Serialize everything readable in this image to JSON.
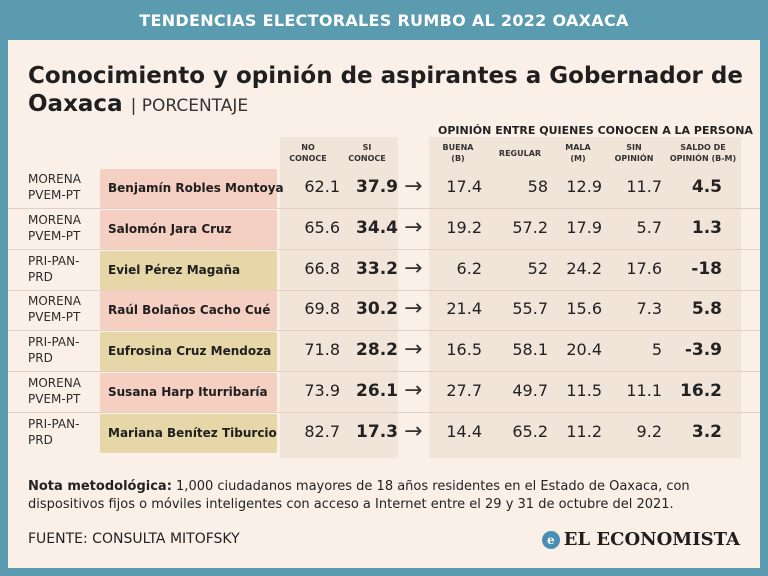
{
  "banner": "TENDENCIAS ELECTORALES RUMBO AL 2022 OAXACA",
  "title": "Conocimiento y opinión de aspirantes a Gobernador de Oaxaca",
  "title_unit": "| PORCENTAJE",
  "header": {
    "group_label": "OPINIÓN  ENTRE QUIENES CONOCEN A LA PERSONA",
    "no_conoce": [
      "NO",
      "CONOCE"
    ],
    "si_conoce": [
      "SI",
      "CONOCE"
    ],
    "buena": [
      "BUENA",
      "(B)"
    ],
    "regular": [
      "REGULAR"
    ],
    "mala": [
      "MALA",
      "(M)"
    ],
    "sin_opinion": [
      "SIN",
      "OPINIÓN"
    ],
    "saldo": [
      "SALDO DE",
      "OPINIÓN (B-M)"
    ]
  },
  "arrow_glyph": "→",
  "colors": {
    "morena_box": "#f5cfc2",
    "pri_box": "#e6d6a8",
    "banner": "#5b9bb0",
    "shade": "#f1e4d9"
  },
  "chart_data": {
    "type": "table",
    "columns": [
      "NO CONOCE",
      "SI CONOCE",
      "BUENA (B)",
      "REGULAR",
      "MALA (M)",
      "SIN OPINIÓN",
      "SALDO DE OPINIÓN (B-M)"
    ],
    "rows": [
      {
        "party": [
          "MORENA",
          "PVEM-PT"
        ],
        "name": "Benjamín Robles Montoya",
        "no_conoce": "62.1",
        "si_conoce": "37.9",
        "buena": "17.4",
        "regular": "58",
        "mala": "12.9",
        "sin_opinion": "11.7",
        "saldo": "4.5",
        "kind": "morena"
      },
      {
        "party": [
          "MORENA",
          "PVEM-PT"
        ],
        "name": "Salomón Jara Cruz",
        "no_conoce": "65.6",
        "si_conoce": "34.4",
        "buena": "19.2",
        "regular": "57.2",
        "mala": "17.9",
        "sin_opinion": "5.7",
        "saldo": "1.3",
        "kind": "morena"
      },
      {
        "party": [
          "PRI-PAN-",
          "PRD"
        ],
        "name": "Eviel Pérez Magaña",
        "no_conoce": "66.8",
        "si_conoce": "33.2",
        "buena": "6.2",
        "regular": "52",
        "mala": "24.2",
        "sin_opinion": "17.6",
        "saldo": "-18",
        "kind": "pri"
      },
      {
        "party": [
          "MORENA",
          "PVEM-PT"
        ],
        "name": "Raúl Bolaños Cacho Cué",
        "no_conoce": "69.8",
        "si_conoce": "30.2",
        "buena": "21.4",
        "regular": "55.7",
        "mala": "15.6",
        "sin_opinion": "7.3",
        "saldo": "5.8",
        "kind": "morena"
      },
      {
        "party": [
          "PRI-PAN-",
          "PRD"
        ],
        "name": "Eufrosina Cruz Mendoza",
        "no_conoce": "71.8",
        "si_conoce": "28.2",
        "buena": "16.5",
        "regular": "58.1",
        "mala": "20.4",
        "sin_opinion": "5",
        "saldo": "-3.9",
        "kind": "pri"
      },
      {
        "party": [
          "MORENA",
          "PVEM-PT"
        ],
        "name": "Susana Harp Iturribaría",
        "no_conoce": "73.9",
        "si_conoce": "26.1",
        "buena": "27.7",
        "regular": "49.7",
        "mala": "11.5",
        "sin_opinion": "11.1",
        "saldo": "16.2",
        "kind": "morena"
      },
      {
        "party": [
          "PRI-PAN-",
          "PRD"
        ],
        "name": "Mariana Benítez Tiburcio",
        "no_conoce": "82.7",
        "si_conoce": "17.3",
        "buena": "14.4",
        "regular": "65.2",
        "mala": "11.2",
        "sin_opinion": "9.2",
        "saldo": "3.2",
        "kind": "pri"
      }
    ]
  },
  "note_label": "Nota metodológica:",
  "note_text": " 1,000 ciudadanos mayores de 18 años residentes en el Estado de Oaxaca, con dispositivos fijos o móviles inteligentes con acceso a Internet entre el 29 y 31 de octubre del 2021.",
  "source": "FUENTE: CONSULTA MITOFSKY",
  "logo_text": "EL ECONOMISTA",
  "logo_mark": "e"
}
